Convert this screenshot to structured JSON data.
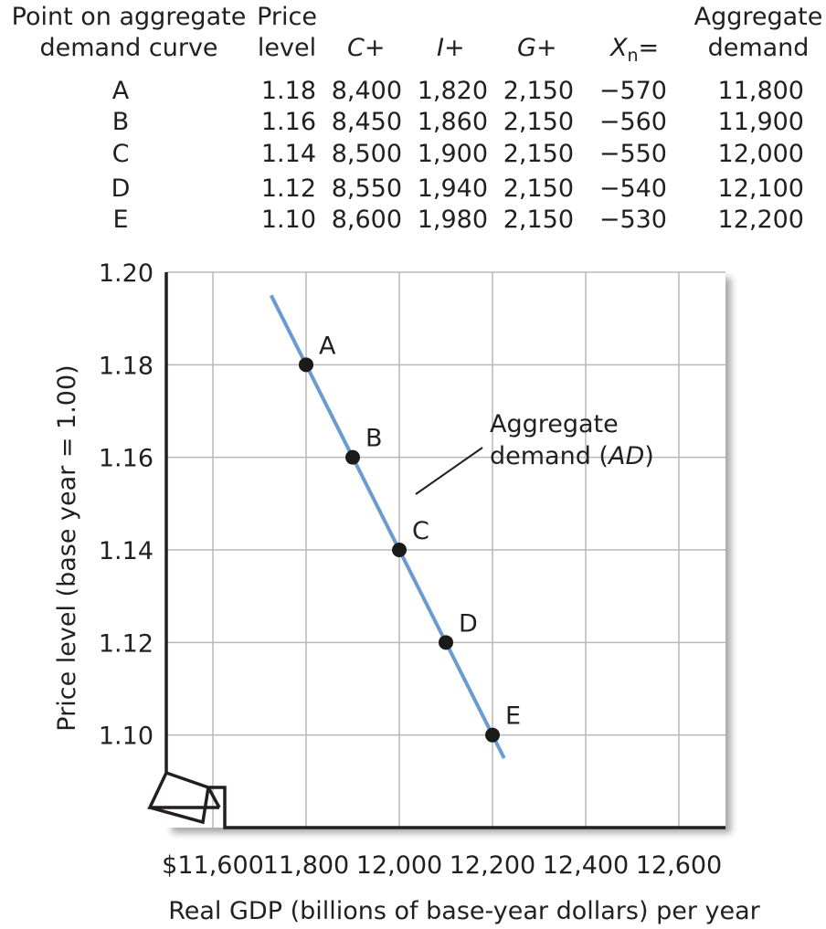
{
  "table": {
    "headers": [
      {
        "line1": "Point on aggregate",
        "line2": "demand curve"
      },
      {
        "line1": "Price",
        "line2": "level"
      },
      {
        "line1": "C+",
        "line2": ""
      },
      {
        "line1": "I+",
        "line2": ""
      },
      {
        "line1": "G+",
        "line2": ""
      },
      {
        "line1": "Xn=",
        "line2": ""
      },
      {
        "line1": "Aggregate",
        "line2": "demand"
      }
    ],
    "rows": [
      [
        "A",
        "1.18",
        "8,400",
        "1,820",
        "2,150",
        "−570",
        "11,800"
      ],
      [
        "B",
        "1.16",
        "8,450",
        "1,860",
        "2,150",
        "−560",
        "11,900"
      ],
      [
        "C",
        "1.14",
        "8,500",
        "1,900",
        "2,150",
        "−550",
        "12,000"
      ],
      [
        "D",
        "1.12",
        "8,550",
        "1,940",
        "2,150",
        "−540",
        "12,100"
      ],
      [
        "E",
        "1.10",
        "8,600",
        "1,980",
        "2,150",
        "−530",
        "12,200"
      ]
    ]
  },
  "chart_data": {
    "type": "line",
    "title": "",
    "xlabel": "Real GDP (billions of base-year dollars) per year",
    "ylabel": "Price level (base year = 1.00)",
    "xlim": [
      11500,
      12700
    ],
    "ylim": [
      1.08,
      1.2
    ],
    "x_ticks": [
      11600,
      11800,
      12000,
      12200,
      12400,
      12600
    ],
    "x_tick_labels": [
      "$11,600",
      "11,800",
      "12,000",
      "12,200",
      "12,400",
      "12,600"
    ],
    "y_ticks": [
      1.1,
      1.12,
      1.14,
      1.16,
      1.18,
      1.2
    ],
    "y_tick_labels": [
      "1.10",
      "1.12",
      "1.14",
      "1.16",
      "1.18",
      "1.20"
    ],
    "grid": true,
    "axis_break": true,
    "series": [
      {
        "name": "Aggregate demand (AD)",
        "color": "#6b9bd1",
        "line_extent": {
          "x": [
            11725,
            12225
          ],
          "y": [
            1.195,
            1.095
          ]
        },
        "points": [
          {
            "label": "A",
            "x": 11800,
            "y": 1.18
          },
          {
            "label": "B",
            "x": 11900,
            "y": 1.16
          },
          {
            "label": "C",
            "x": 12000,
            "y": 1.14
          },
          {
            "label": "D",
            "x": 12100,
            "y": 1.12
          },
          {
            "label": "E",
            "x": 12200,
            "y": 1.1
          }
        ]
      }
    ],
    "annotation": {
      "line1": "Aggregate",
      "line2": "demand (",
      "line2_italic": "AD",
      "line2_end": ")"
    }
  }
}
